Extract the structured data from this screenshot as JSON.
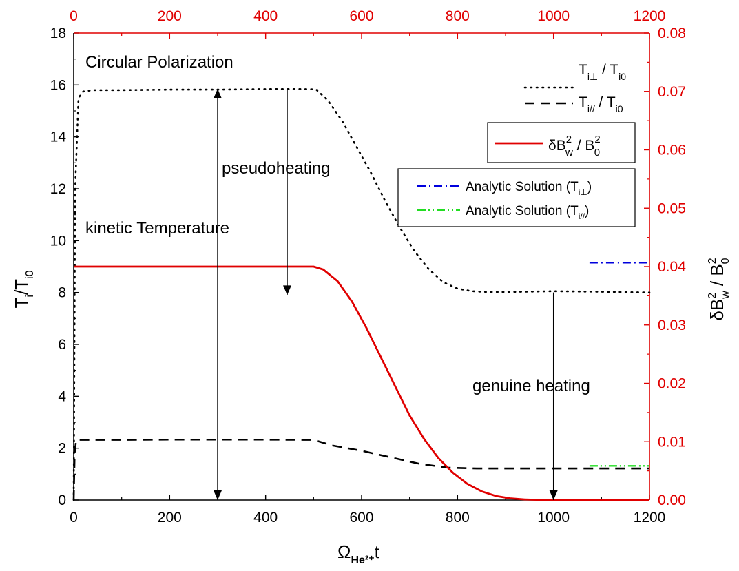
{
  "chart_data": {
    "type": "line",
    "title": "",
    "bottom_axis": {
      "range": [
        0,
        1200
      ],
      "ticks": [
        "0",
        "200",
        "400",
        "600",
        "800",
        "1000",
        "1200"
      ],
      "label_main": "Ω",
      "label_sub": "He²⁺",
      "label_tail": "t"
    },
    "top_axis": {
      "range": [
        0,
        1200
      ],
      "ticks": [
        "0",
        "200",
        "400",
        "600",
        "800",
        "1000",
        "1200"
      ],
      "color": "#e00000"
    },
    "left_axis": {
      "range": [
        0,
        18
      ],
      "ticks": [
        "0",
        "2",
        "4",
        "6",
        "8",
        "10",
        "12",
        "14",
        "16",
        "18"
      ],
      "label_main": "T",
      "label_sub": "i",
      "label_mid": "/T",
      "label_sub2": "i0"
    },
    "right_axis": {
      "range": [
        0,
        0.08
      ],
      "ticks": [
        "0.00",
        "0.01",
        "0.02",
        "0.03",
        "0.04",
        "0.05",
        "0.06",
        "0.07",
        "0.08"
      ],
      "color": "#e00000",
      "label_main": "δB",
      "label_sup1": "2",
      "label_sub1": "w",
      "label_mid": " / B",
      "label_sup2": "2",
      "label_sub2": "0"
    },
    "series": [
      {
        "name": "T⊥ / Ti0",
        "axis": "left",
        "style": "dotted",
        "color": "#000000",
        "x": [
          0,
          3,
          10,
          20,
          40,
          100,
          200,
          300,
          400,
          480,
          505,
          530,
          560,
          590,
          620,
          650,
          680,
          710,
          740,
          770,
          800,
          830,
          860,
          900,
          1000,
          1100,
          1200
        ],
        "y": [
          0,
          12,
          15.5,
          15.75,
          15.8,
          15.8,
          15.82,
          15.82,
          15.84,
          15.84,
          15.83,
          15.4,
          14.6,
          13.6,
          12.6,
          11.5,
          10.5,
          9.6,
          8.9,
          8.4,
          8.15,
          8.05,
          8.02,
          8.02,
          8.05,
          8.03,
          8.0
        ]
      },
      {
        "name": "T// / Ti0",
        "axis": "left",
        "style": "dashed",
        "color": "#000000",
        "x": [
          0,
          2,
          5,
          10,
          100,
          200,
          300,
          400,
          500,
          540,
          600,
          660,
          720,
          780,
          840,
          900,
          1000,
          1100,
          1200
        ],
        "y": [
          0,
          1.8,
          2.3,
          2.32,
          2.32,
          2.33,
          2.33,
          2.33,
          2.32,
          2.1,
          1.9,
          1.65,
          1.4,
          1.25,
          1.22,
          1.22,
          1.22,
          1.22,
          1.22
        ]
      },
      {
        "name": "δB²w / B²0",
        "axis": "right",
        "style": "solid",
        "color": "#e00000",
        "x": [
          0,
          100,
          200,
          300,
          400,
          500,
          520,
          550,
          580,
          610,
          640,
          670,
          700,
          730,
          760,
          790,
          820,
          850,
          880,
          910,
          940,
          970,
          1000,
          1100,
          1200
        ],
        "y": [
          0.04,
          0.04,
          0.04,
          0.04,
          0.04,
          0.04,
          0.0395,
          0.0375,
          0.034,
          0.0295,
          0.0245,
          0.0195,
          0.0145,
          0.0105,
          0.0072,
          0.0047,
          0.0028,
          0.0015,
          0.0007,
          0.0003,
          0.0001,
          3e-05,
          0.0,
          0.0,
          0.0
        ]
      },
      {
        "name": "Analytic Solution (Ti⊥)",
        "axis": "left",
        "style": "dashdot",
        "color": "#0000dd",
        "x": [
          1075,
          1200
        ],
        "y": [
          9.15,
          9.15
        ]
      },
      {
        "name": "Analytic Solution (Ti//)",
        "axis": "left",
        "style": "dashdotdot",
        "color": "#22dd22",
        "x": [
          1075,
          1200
        ],
        "y": [
          1.32,
          1.32
        ]
      }
    ],
    "annotations": [
      {
        "text": "Circular Polarization"
      },
      {
        "text": "pseudoheating"
      },
      {
        "text": "kinetic Temperature"
      },
      {
        "text": "genuine heating"
      }
    ],
    "arrows": [
      {
        "x": 300,
        "y_from": 15.85,
        "y_to": 0,
        "both_ends": true
      },
      {
        "x": 445,
        "y_from": 15.85,
        "y_to": 7.9,
        "both_ends": false
      },
      {
        "x": 1000,
        "y_from": 8.0,
        "y_to": 0,
        "both_ends": false
      }
    ],
    "legend": {
      "placement": "top-right",
      "main": [
        {
          "main": "T",
          "sub": "i⊥",
          "mid": " / T",
          "sub2": "i0"
        },
        {
          "main": "T",
          "sub": "i//",
          "mid": " / T",
          "sub2": "i0"
        }
      ],
      "red": {
        "main": "δB",
        "sup1": "2",
        "sub1": "w",
        "mid": " / B",
        "sup2": "2",
        "sub2": "0"
      },
      "analytic": [
        {
          "main": "Analytic Solution (T",
          "sub": "i⊥",
          "tail": ")"
        },
        {
          "main": "Analytic Solution (T",
          "sub": "i//",
          "tail": ")"
        }
      ]
    }
  }
}
